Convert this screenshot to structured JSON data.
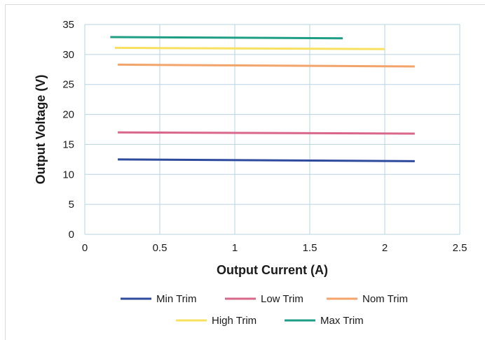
{
  "chart_data": {
    "type": "line",
    "title": "",
    "xlabel": "Output Current (A)",
    "ylabel": "Output Voltage (V)",
    "xlim": [
      0,
      2.5
    ],
    "ylim": [
      0,
      35
    ],
    "x_ticks": [
      "0",
      "0.5",
      "1",
      "1.5",
      "2",
      "2.5"
    ],
    "y_ticks": [
      "0",
      "5",
      "10",
      "15",
      "20",
      "25",
      "30",
      "35"
    ],
    "grid": true,
    "legend_position": "bottom",
    "series": [
      {
        "name": "Min Trim",
        "color": "#2e4a9e",
        "x": [
          0.22,
          2.2
        ],
        "y": [
          12.5,
          12.2
        ]
      },
      {
        "name": "Low Trim",
        "color": "#d9678a",
        "x": [
          0.22,
          2.2
        ],
        "y": [
          17.0,
          16.8
        ]
      },
      {
        "name": "Nom Trim",
        "color": "#f3a46b",
        "x": [
          0.22,
          2.2
        ],
        "y": [
          28.3,
          28.0
        ]
      },
      {
        "name": "High Trim",
        "color": "#f8e060",
        "x": [
          0.2,
          2.0
        ],
        "y": [
          31.1,
          30.9
        ]
      },
      {
        "name": "Max Trim",
        "color": "#1e9e84",
        "x": [
          0.17,
          1.72
        ],
        "y": [
          32.9,
          32.7
        ]
      }
    ]
  }
}
